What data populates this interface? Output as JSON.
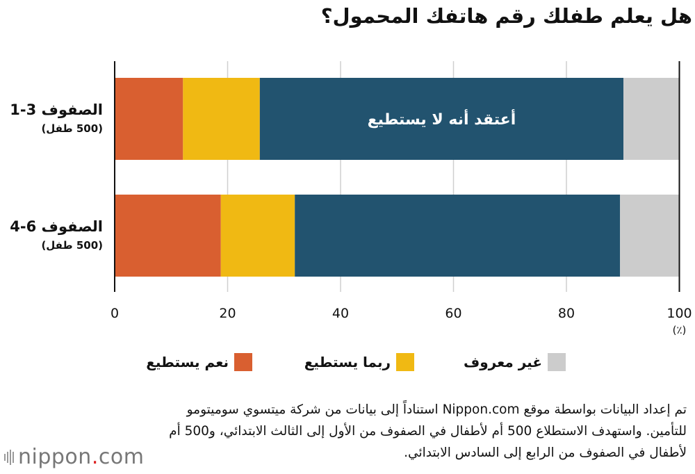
{
  "chart_data": {
    "type": "bar",
    "orientation": "horizontal",
    "stacked": true,
    "title": "هل يعلم طفلك رقم هاتفك المحمول؟",
    "categories": [
      {
        "label": "الصفوف 3-1",
        "sublabel": "(500 طفل)"
      },
      {
        "label": "الصفوف 6-4",
        "sublabel": "(500 طفل)"
      }
    ],
    "series": [
      {
        "name": "نعم يستطيع",
        "color": "#d95f30",
        "values": [
          12.1,
          18.8
        ]
      },
      {
        "name": "ربما يستطيع",
        "color": "#f0b913",
        "values": [
          13.6,
          13.1
        ]
      },
      {
        "name": "أعتقد أنه لا يستطيع",
        "color": "#22536f",
        "values": [
          64.4,
          57.6
        ]
      },
      {
        "name": "غير معروف",
        "color": "#cccccc",
        "values": [
          9.9,
          10.5
        ]
      }
    ],
    "in_bar_label": "أعتقد أنه لا يستطيع",
    "xlim": [
      0,
      100
    ],
    "xticks": [
      "0",
      "20",
      "40",
      "60",
      "80",
      "100"
    ],
    "xunit": "(٪)",
    "grid": true,
    "legend": [
      {
        "label": "نعم يستطيع",
        "color": "#d95f30"
      },
      {
        "label": "ربما يستطيع",
        "color": "#f0b913"
      },
      {
        "label": "غير معروف",
        "color": "#cccccc"
      }
    ],
    "legend_position": "bottom"
  },
  "source": "تم إعداد البيانات بواسطة موقع Nippon.com استناداً إلى بيانات من شركة ميتسوي سوميتومو للتأمين. واستهدف الاستطلاع 500 أم لأطفال في الصفوف من الأول إلى الثالث الابتدائي، و500 أم لأطفال في الصفوف من الرابع إلى السادس الابتدائي.",
  "logo": {
    "name": "nippon",
    "dot": ".",
    "tld": "com"
  }
}
